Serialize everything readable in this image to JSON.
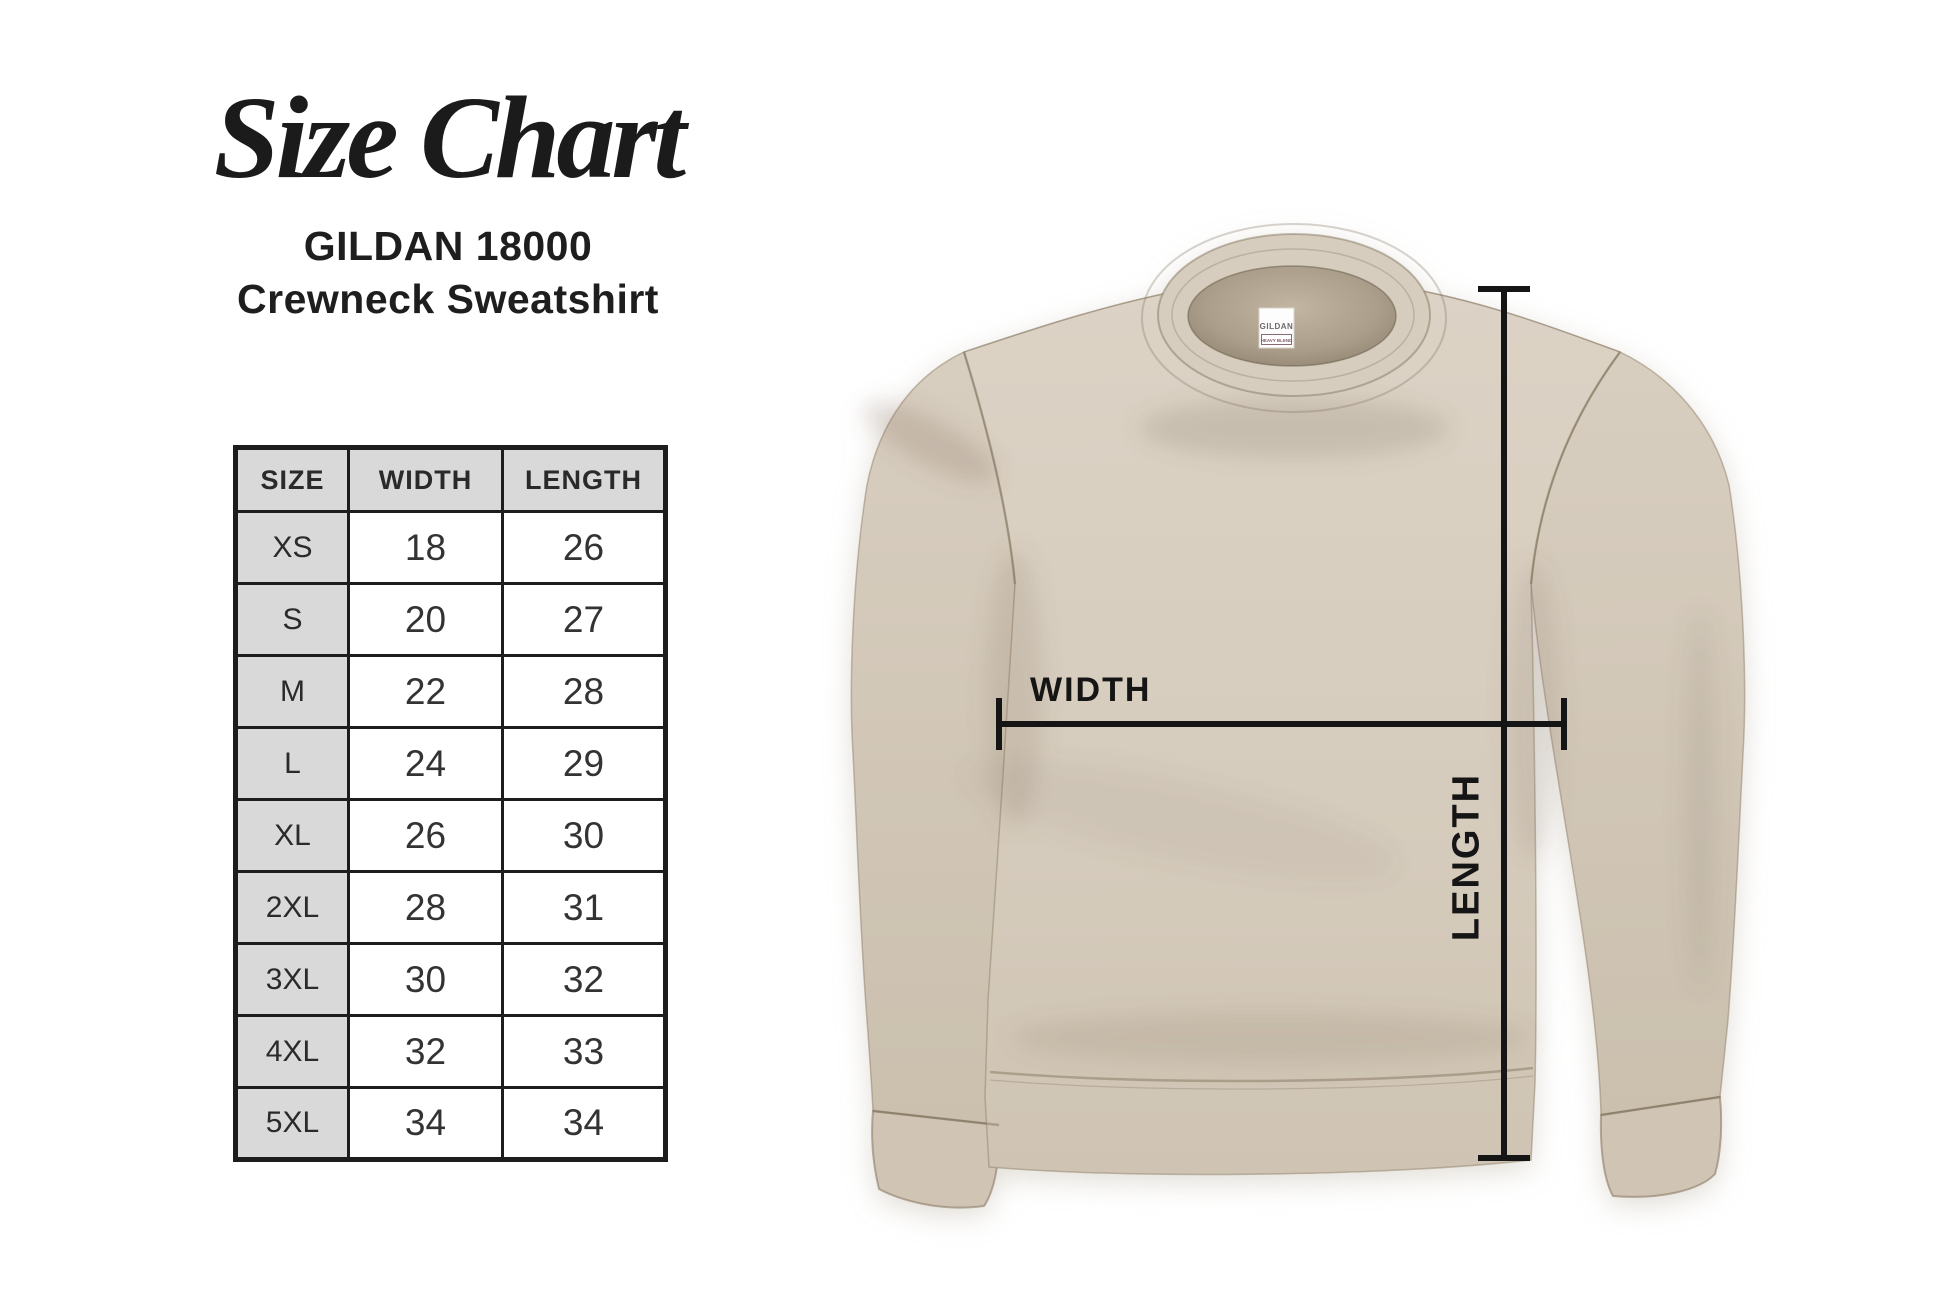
{
  "header": {
    "title": "Size Chart",
    "subtitle_line1": "GILDAN 18000",
    "subtitle_line2": "Crewneck Sweatshirt"
  },
  "chart_data": {
    "type": "table",
    "title": "Size Chart",
    "subtitle": "GILDAN 18000 Crewneck Sweatshirt",
    "columns": [
      "SIZE",
      "WIDTH",
      "LENGTH"
    ],
    "rows": [
      [
        "XS",
        "18",
        "26"
      ],
      [
        "S",
        "20",
        "27"
      ],
      [
        "M",
        "22",
        "28"
      ],
      [
        "L",
        "24",
        "29"
      ],
      [
        "XL",
        "26",
        "30"
      ],
      [
        "2XL",
        "28",
        "31"
      ],
      [
        "3XL",
        "30",
        "32"
      ],
      [
        "4XL",
        "32",
        "33"
      ],
      [
        "5XL",
        "34",
        "34"
      ]
    ]
  },
  "annotations": {
    "width_label": "WIDTH",
    "length_label": "LENGTH"
  },
  "garment": {
    "neck_label_brand": "GILDAN",
    "neck_label_line": "HEAVY BLEND",
    "fabric_color": "#d8cec0"
  },
  "colors": {
    "annotation_line": "#151515",
    "table_border": "#1d1d1d",
    "table_header_bg": "#d9d9d9",
    "text": "#222222",
    "background": "#ffffff"
  }
}
